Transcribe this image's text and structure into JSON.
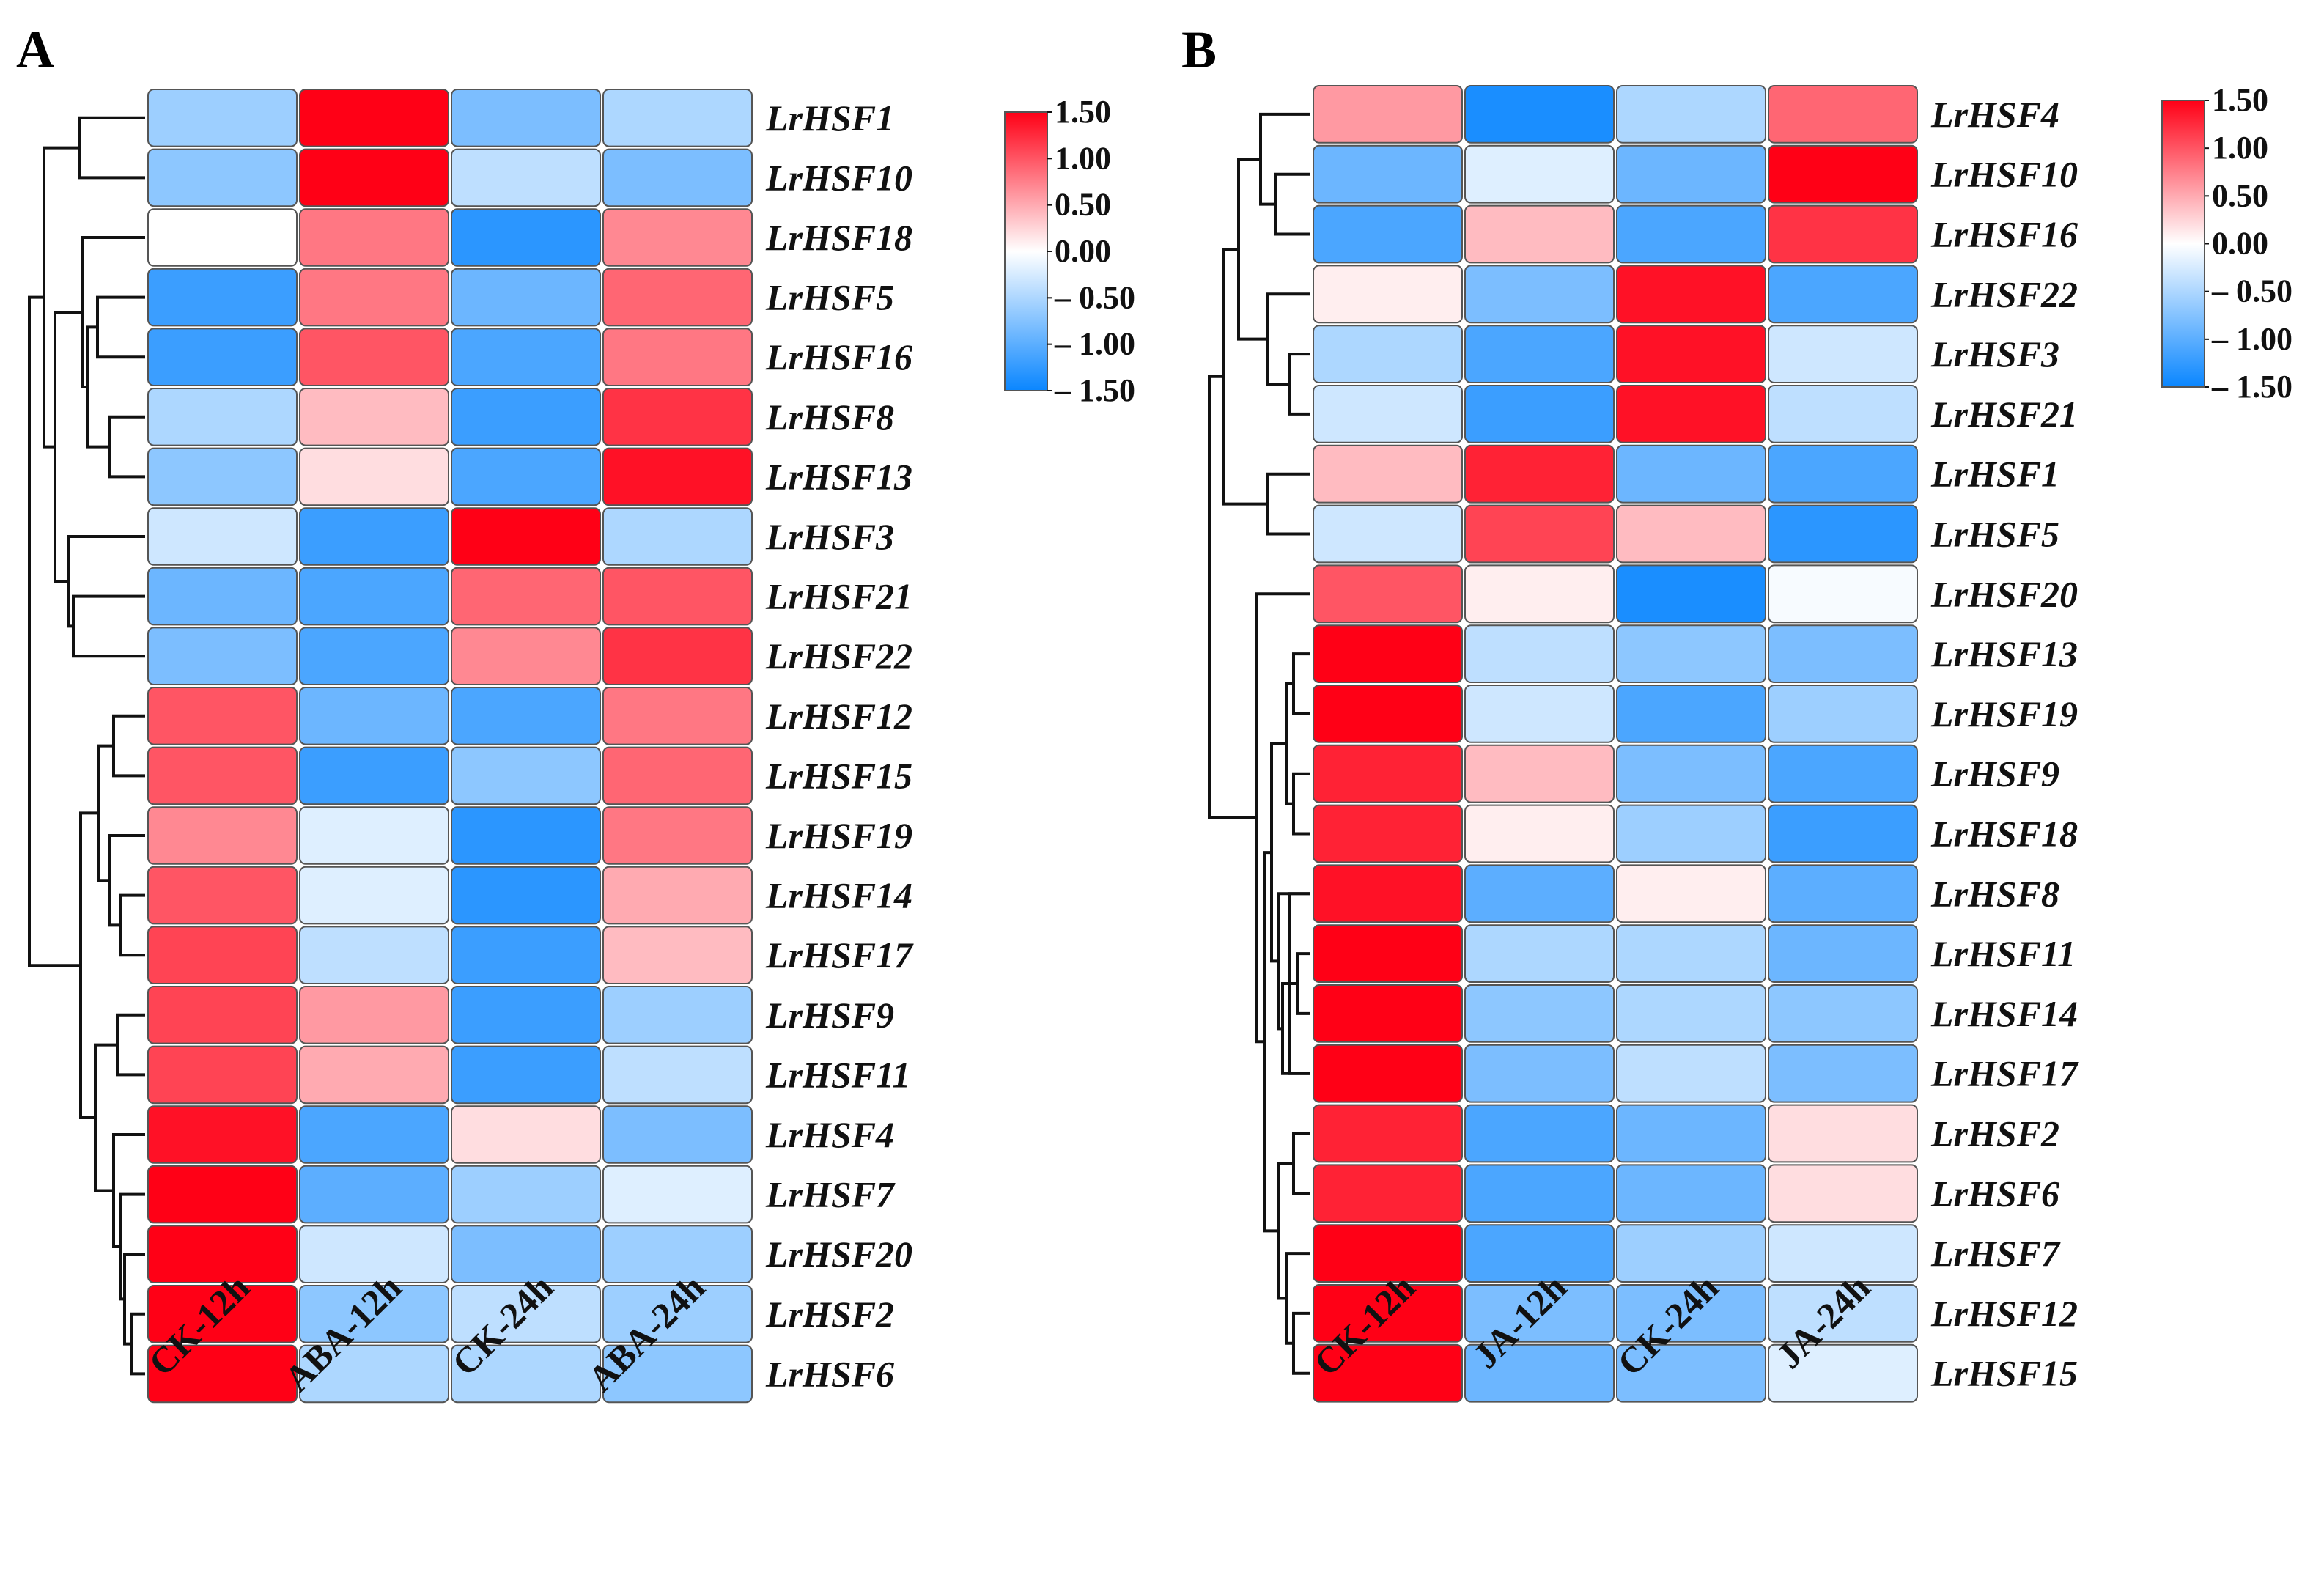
{
  "chart_data": [
    {
      "type": "heatmap",
      "panel_label": "A",
      "columns": [
        "CK-12h",
        "ABA-12h",
        "CK-24h",
        "ABA-24h"
      ],
      "rows": [
        "LrHSF1",
        "LrHSF10",
        "LrHSF18",
        "LrHSF5",
        "LrHSF16",
        "LrHSF8",
        "LrHSF13",
        "LrHSF3",
        "LrHSF21",
        "LrHSF22",
        "LrHSF12",
        "LrHSF15",
        "LrHSF19",
        "LrHSF14",
        "LrHSF17",
        "LrHSF9",
        "LrHSF11",
        "LrHSF4",
        "LrHSF7",
        "LrHSF20",
        "LrHSF2",
        "LrHSF6"
      ],
      "values": [
        [
          -0.6,
          1.5,
          -0.8,
          -0.5
        ],
        [
          -0.7,
          1.5,
          -0.4,
          -0.8
        ],
        [
          0.0,
          0.8,
          -1.3,
          0.7
        ],
        [
          -1.2,
          0.8,
          -0.9,
          0.9
        ],
        [
          -1.2,
          1.0,
          -1.1,
          0.8
        ],
        [
          -0.5,
          0.4,
          -1.2,
          1.2
        ],
        [
          -0.7,
          0.2,
          -1.1,
          1.4
        ],
        [
          -0.3,
          -1.2,
          1.5,
          -0.5
        ],
        [
          -0.9,
          -1.1,
          0.9,
          1.0
        ],
        [
          -0.8,
          -1.1,
          0.7,
          1.2
        ],
        [
          1.0,
          -0.9,
          -1.1,
          0.8
        ],
        [
          1.0,
          -1.2,
          -0.7,
          0.9
        ],
        [
          0.7,
          -0.2,
          -1.3,
          0.8
        ],
        [
          1.0,
          -0.2,
          -1.3,
          0.5
        ],
        [
          1.1,
          -0.4,
          -1.2,
          0.4
        ],
        [
          1.1,
          0.6,
          -1.2,
          -0.6
        ],
        [
          1.1,
          0.5,
          -1.2,
          -0.4
        ],
        [
          1.4,
          -1.1,
          0.2,
          -0.8
        ],
        [
          1.5,
          -1.0,
          -0.6,
          -0.2
        ],
        [
          1.5,
          -0.3,
          -0.8,
          -0.6
        ],
        [
          1.5,
          -0.7,
          -0.4,
          -0.6
        ],
        [
          1.5,
          -0.5,
          -0.5,
          -0.7
        ]
      ],
      "colorbar": {
        "ticks": [
          "1.50",
          "1.00",
          "0.50",
          "0.00",
          "– 0.50",
          "– 1.00",
          "– 1.50"
        ],
        "min": -1.5,
        "max": 1.5
      }
    },
    {
      "type": "heatmap",
      "panel_label": "B",
      "columns": [
        "CK-12h",
        "JA-12h",
        "CK-24h",
        "JA-24h"
      ],
      "rows": [
        "LrHSF4",
        "LrHSF10",
        "LrHSF16",
        "LrHSF22",
        "LrHSF3",
        "LrHSF21",
        "LrHSF1",
        "LrHSF5",
        "LrHSF20",
        "LrHSF13",
        "LrHSF19",
        "LrHSF9",
        "LrHSF18",
        "LrHSF8",
        "LrHSF11",
        "LrHSF14",
        "LrHSF17",
        "LrHSF2",
        "LrHSF6",
        "LrHSF7",
        "LrHSF12",
        "LrHSF15"
      ],
      "values": [
        [
          0.6,
          -1.4,
          -0.5,
          0.9
        ],
        [
          -0.9,
          -0.2,
          -0.9,
          1.5
        ],
        [
          -1.1,
          0.4,
          -1.1,
          1.2
        ],
        [
          0.1,
          -0.8,
          1.4,
          -1.1
        ],
        [
          -0.5,
          -1.1,
          1.4,
          -0.3
        ],
        [
          -0.3,
          -1.2,
          1.4,
          -0.4
        ],
        [
          0.4,
          1.3,
          -0.9,
          -1.1
        ],
        [
          -0.3,
          1.1,
          0.4,
          -1.3
        ],
        [
          1.0,
          0.1,
          -1.4,
          -0.05
        ],
        [
          1.5,
          -0.4,
          -0.7,
          -0.8
        ],
        [
          1.5,
          -0.3,
          -1.1,
          -0.6
        ],
        [
          1.3,
          0.4,
          -0.8,
          -1.1
        ],
        [
          1.3,
          0.1,
          -0.6,
          -1.2
        ],
        [
          1.4,
          -1.0,
          0.1,
          -1.0
        ],
        [
          1.5,
          -0.5,
          -0.5,
          -0.9
        ],
        [
          1.5,
          -0.7,
          -0.5,
          -0.7
        ],
        [
          1.5,
          -0.8,
          -0.4,
          -0.8
        ],
        [
          1.3,
          -1.1,
          -0.9,
          0.2
        ],
        [
          1.3,
          -1.1,
          -0.9,
          0.2
        ],
        [
          1.5,
          -1.1,
          -0.6,
          -0.3
        ],
        [
          1.5,
          -0.8,
          -0.8,
          -0.4
        ],
        [
          1.5,
          -0.9,
          -0.8,
          -0.2
        ]
      ],
      "colorbar": {
        "ticks": [
          "1.50",
          "1.00",
          "0.50",
          "0.00",
          "– 0.50",
          "– 1.00",
          "– 1.50"
        ],
        "min": -1.5,
        "max": 1.5
      }
    }
  ]
}
